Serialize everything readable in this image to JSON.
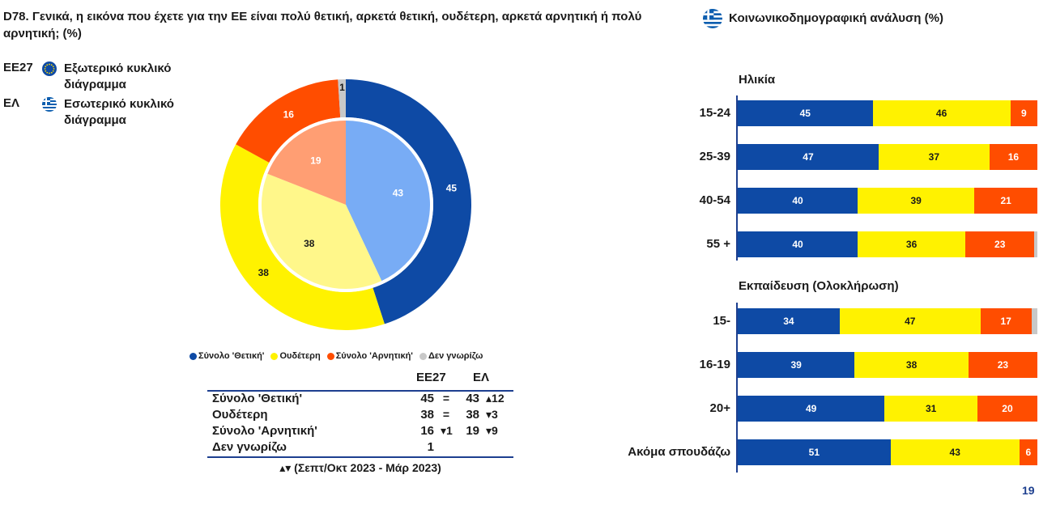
{
  "title": "D78. Γενικά, η εικόνα που έχετε για την ΕΕ είναι πολύ θετική, αρκετά θετική, ουδέτερη, αρκετά αρνητική ή πολύ αρνητική; (%)",
  "right_title": "Κοινωνικοδημογραφική ανάλυση (%)",
  "page_number": "19",
  "colors": {
    "positive": "#0e4aa5",
    "neutral": "#fff200",
    "negative": "#ff4d00",
    "dont_know": "#c8c8c8",
    "inner_positive": "#78acf5",
    "inner_neutral": "#fff78a",
    "inner_negative": "#ff9e73",
    "table_line": "#1d3f8f"
  },
  "legend_top": [
    {
      "code": "ΕΕ27",
      "text": "Εξωτερικό κυκλικό διάγραμμα",
      "icon": "eu-flag-icon"
    },
    {
      "code": "ΕΛ",
      "text": "Εσωτερικό κυκλικό διάγραμμα",
      "icon": "greek-flag-icon"
    }
  ],
  "pie_legend": [
    {
      "label": "Σύνολο 'Θετική'",
      "color": "#0e4aa5"
    },
    {
      "label": "Ουδέτερη",
      "color": "#fff200"
    },
    {
      "label": "Σύνολο 'Αρνητική'",
      "color": "#ff4d00"
    },
    {
      "label": "Δεν γνωρίζω",
      "color": "#c8c8c8"
    }
  ],
  "comparison_table": {
    "headers": {
      "eu": "ΕΕ27",
      "el": "ΕΛ"
    },
    "rows": [
      {
        "label": "Σύνολο 'Θετική'",
        "eu": "45",
        "eu_trend": "=",
        "el": "43",
        "el_trend": "▴12"
      },
      {
        "label": "Ουδέτερη",
        "eu": "38",
        "eu_trend": "=",
        "el": "38",
        "el_trend": "▾3"
      },
      {
        "label": "Σύνολο 'Αρνητική'",
        "eu": "16",
        "eu_trend": "▾1",
        "el": "19",
        "el_trend": "▾9"
      },
      {
        "label": "Δεν γνωρίζω",
        "eu": "1",
        "eu_trend": "",
        "el": "",
        "el_trend": ""
      }
    ],
    "footnote": "▴▾ (Σεπτ/Οκτ 2023 - Μάρ 2023)"
  },
  "chart_data": [
    {
      "type": "pie",
      "ring": "outer",
      "categories": [
        "Σύνολο 'Θετική'",
        "Ουδέτερη",
        "Σύνολο 'Αρνητική'",
        "Δεν γνωρίζω"
      ],
      "values": [
        45,
        38,
        16,
        1
      ],
      "colors": [
        "#0e4aa5",
        "#fff200",
        "#ff4d00",
        "#c8c8c8"
      ]
    },
    {
      "type": "pie",
      "ring": "inner",
      "categories": [
        "Σύνολο 'Θετική'",
        "Ουδέτερη",
        "Σύνολο 'Αρνητική'"
      ],
      "values": [
        43,
        38,
        19
      ],
      "colors": [
        "#78acf5",
        "#fff78a",
        "#ff9e73"
      ]
    },
    {
      "type": "bar",
      "stacked": true,
      "orientation": "horizontal",
      "series_order": [
        "Σύνολο 'Θετική'",
        "Ουδέτερη",
        "Σύνολο 'Αρνητική'",
        "Δεν γνωρίζω"
      ],
      "groups": [
        {
          "title": "Ηλικία",
          "rows": [
            {
              "label": "15-24",
              "values": [
                45,
                46,
                9,
                0
              ]
            },
            {
              "label": "25-39",
              "values": [
                47,
                37,
                16,
                0
              ]
            },
            {
              "label": "40-54",
              "values": [
                40,
                39,
                21,
                0
              ]
            },
            {
              "label": "55 +",
              "values": [
                40,
                36,
                23,
                1
              ]
            }
          ]
        },
        {
          "title": "Εκπαίδευση (Ολοκλήρωση)",
          "rows": [
            {
              "label": "15-",
              "values": [
                34,
                47,
                17,
                2
              ]
            },
            {
              "label": "16-19",
              "values": [
                39,
                38,
                23,
                0
              ]
            },
            {
              "label": "20+",
              "values": [
                49,
                31,
                20,
                0
              ]
            },
            {
              "label": "Ακόμα σπουδάζω",
              "values": [
                51,
                43,
                6,
                0
              ]
            }
          ]
        }
      ]
    }
  ]
}
